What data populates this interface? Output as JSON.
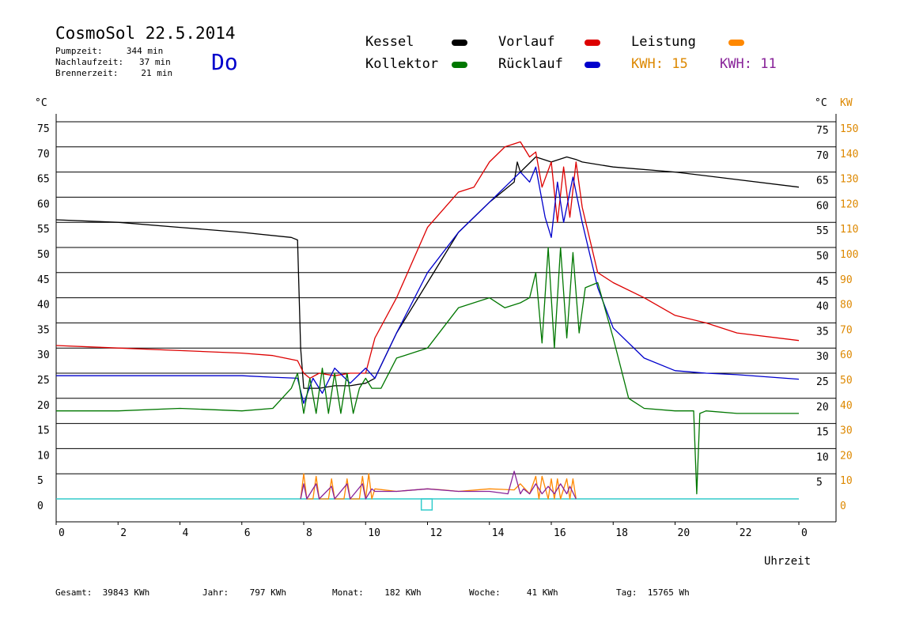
{
  "header": {
    "title": "CosmoSol 22.5.2014",
    "day": "Do",
    "stats": [
      {
        "label": "Pumpzeit:",
        "value": "344 min"
      },
      {
        "label": "Nachlaufzeit:",
        "value": "37 min"
      },
      {
        "label": "Brennerzeit:",
        "value": "21 min"
      }
    ]
  },
  "legend": {
    "kessel": {
      "label": "Kessel",
      "color": "#000000"
    },
    "vorlauf": {
      "label": "Vorlauf",
      "color": "#dd0000"
    },
    "leistung": {
      "label": "Leistung",
      "color": "#ff8800"
    },
    "kollektor": {
      "label": "Kollektor",
      "color": "#007700"
    },
    "ruecklauf": {
      "label": "Rücklauf",
      "color": "#0000cc"
    },
    "kwh1": {
      "label": "KWH:",
      "value": "15",
      "color": "#dd8800"
    },
    "kwh2": {
      "label": "KWH:",
      "value": "11",
      "color": "#882299"
    }
  },
  "footer": [
    {
      "label": "Gesamt:",
      "value": "39843 KWh"
    },
    {
      "label": "Jahr:",
      "value": "797 KWh"
    },
    {
      "label": "Monat:",
      "value": "182 KWh"
    },
    {
      "label": "Woche:",
      "value": "41 KWh"
    },
    {
      "label": "Tag:",
      "value": "15765 Wh"
    }
  ],
  "chart_data": {
    "type": "line",
    "xlabel": "Uhrzeit",
    "ylabel_left": "°C",
    "ylabel_right_temp": "°C",
    "ylabel_right_power": "KW",
    "xlim": [
      0,
      24
    ],
    "ylim": [
      0,
      75
    ],
    "ylim_power": [
      0,
      150
    ],
    "x_ticks": [
      "0",
      "2",
      "4",
      "6",
      "8",
      "10",
      "12",
      "14",
      "16",
      "18",
      "20",
      "22",
      "0"
    ],
    "y_ticks": [
      0,
      5,
      10,
      15,
      20,
      25,
      30,
      35,
      40,
      45,
      50,
      55,
      60,
      65,
      70,
      75
    ],
    "y_ticks_right": [
      "",
      "5",
      "10",
      "15",
      "20",
      "25",
      "30",
      "35",
      "40",
      "45",
      "50",
      "55",
      "60",
      "65",
      "70",
      "75"
    ],
    "power_ticks": [
      0,
      10,
      20,
      30,
      40,
      50,
      60,
      70,
      80,
      90,
      100,
      110,
      120,
      130,
      140,
      150
    ],
    "grid": true,
    "series": [
      {
        "name": "Kessel",
        "color": "#000000",
        "x": [
          0,
          2,
          4,
          6,
          7.6,
          7.8,
          7.9,
          8,
          8.5,
          9,
          9.5,
          10,
          10.3,
          11,
          12,
          13,
          14,
          14.8,
          14.9,
          15,
          15.5,
          16,
          16.5,
          16.8,
          17,
          18,
          20,
          22,
          24
        ],
        "y": [
          55.5,
          55,
          54,
          53,
          52,
          51.5,
          30,
          22,
          22,
          22.5,
          22.5,
          23,
          24,
          33,
          43,
          53,
          59,
          63,
          67,
          65,
          68,
          67,
          68,
          67.5,
          67,
          66,
          65,
          63.5,
          62
        ]
      },
      {
        "name": "Vorlauf",
        "color": "#dd0000",
        "x": [
          0,
          2,
          4,
          6,
          7,
          7.8,
          8,
          8.2,
          8.5,
          9,
          9.5,
          10,
          10.3,
          11,
          12,
          13,
          13.5,
          14,
          14.5,
          15,
          15.3,
          15.5,
          15.7,
          16,
          16.2,
          16.4,
          16.6,
          16.8,
          17,
          17.5,
          18,
          19,
          20,
          21,
          22,
          24
        ],
        "y": [
          30.5,
          30,
          29.5,
          29,
          28.5,
          27.5,
          25,
          24,
          25,
          24.5,
          25,
          25,
          32,
          40,
          54,
          61,
          62,
          67,
          70,
          71,
          68,
          69,
          62,
          67,
          55,
          66,
          56,
          67,
          58,
          45,
          43,
          40,
          36.5,
          35,
          33,
          31.5
        ]
      },
      {
        "name": "Rücklauf",
        "color": "#0000cc",
        "x": [
          0,
          2,
          4,
          6,
          7,
          7.8,
          8,
          8.3,
          8.6,
          9,
          9.5,
          10,
          10.3,
          11,
          12,
          13,
          14,
          14.5,
          15,
          15.3,
          15.5,
          15.8,
          16,
          16.2,
          16.4,
          16.7,
          17,
          17.5,
          18,
          19,
          20,
          21,
          22,
          24
        ],
        "y": [
          24.5,
          24.5,
          24.5,
          24.5,
          24.2,
          24,
          19,
          24,
          21,
          26,
          23,
          26,
          24,
          33,
          45,
          53,
          59,
          62,
          65,
          63,
          66,
          56,
          52,
          63,
          55,
          64,
          55,
          42,
          34,
          28,
          25.5,
          25,
          24.7,
          23.8
        ]
      },
      {
        "name": "Kollektor",
        "color": "#007700",
        "x": [
          0,
          2,
          4,
          6,
          7,
          7.6,
          7.8,
          8,
          8.2,
          8.4,
          8.6,
          8.8,
          9,
          9.2,
          9.4,
          9.6,
          9.8,
          10,
          10.2,
          10.5,
          11,
          12,
          13,
          14,
          14.5,
          15,
          15.3,
          15.5,
          15.7,
          15.9,
          16.1,
          16.3,
          16.5,
          16.7,
          16.9,
          17.1,
          17.5,
          18,
          18.5,
          19,
          20,
          20.6,
          20.7,
          20.8,
          21,
          22,
          24
        ],
        "y": [
          17.5,
          17.5,
          18,
          17.5,
          18,
          22,
          25,
          17,
          24,
          17,
          26,
          17,
          25,
          17,
          25,
          17,
          22,
          24,
          22,
          22,
          28,
          30,
          38,
          40,
          38,
          39,
          40,
          45,
          31,
          50,
          30,
          50,
          32,
          49,
          33,
          42,
          43,
          32,
          20,
          18,
          17.5,
          17.5,
          1,
          17,
          17.5,
          17,
          17
        ]
      },
      {
        "name": "Leistung",
        "color": "#ff8800",
        "x": [
          7.9,
          8,
          8.1,
          8.3,
          8.4,
          8.5,
          8.8,
          8.9,
          9,
          9.3,
          9.4,
          9.5,
          9.8,
          9.9,
          10,
          10.1,
          10.2,
          10.3,
          11,
          12,
          12.5,
          13,
          14,
          14.8,
          15,
          15.3,
          15.5,
          15.6,
          15.7,
          15.9,
          16,
          16.1,
          16.2,
          16.3,
          16.5,
          16.6,
          16.7,
          16.8
        ],
        "y": [
          0,
          5,
          0,
          0,
          4.5,
          0,
          0,
          4,
          0,
          0,
          4,
          0,
          0,
          4.5,
          0,
          5,
          0,
          2,
          1.5,
          2,
          1.8,
          1.5,
          2,
          1.8,
          3,
          1,
          4.5,
          0,
          4.5,
          0,
          4,
          0,
          4,
          0,
          4,
          0,
          4,
          0
        ]
      },
      {
        "name": "KWH",
        "color": "#882299",
        "x": [
          7.9,
          8,
          8.1,
          8.4,
          8.5,
          8.9,
          9,
          9.4,
          9.5,
          9.9,
          10,
          10.2,
          10.3,
          11,
          12,
          13,
          14,
          14.6,
          14.8,
          15,
          15.1,
          15.3,
          15.5,
          15.7,
          15.9,
          16.1,
          16.3,
          16.5,
          16.6,
          16.8
        ],
        "y": [
          0,
          3,
          0,
          3,
          0,
          2.5,
          0,
          3,
          0,
          3,
          0,
          2,
          1.5,
          1.5,
          2,
          1.5,
          1.5,
          1,
          5.5,
          1,
          2,
          1,
          3,
          1,
          2.5,
          1,
          3,
          1,
          2.5,
          0
        ]
      }
    ]
  }
}
